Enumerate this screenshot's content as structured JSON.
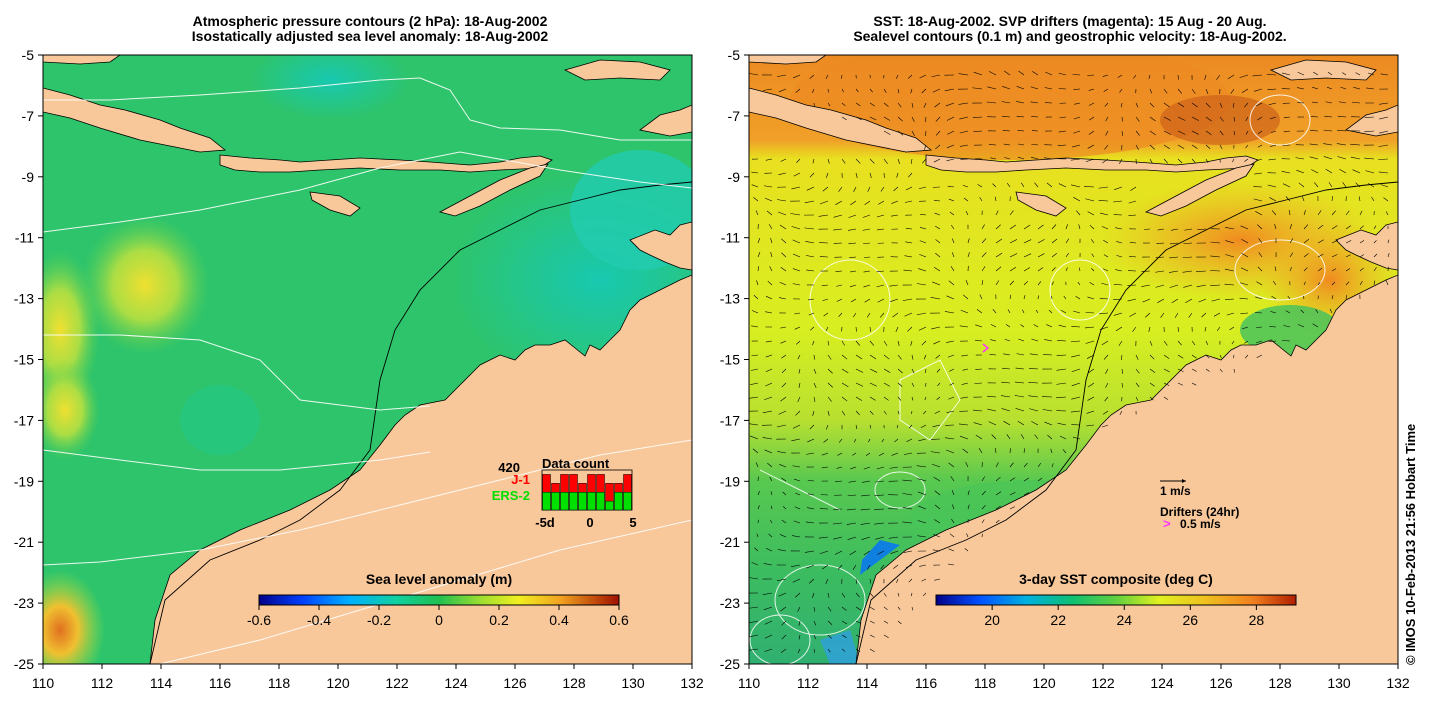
{
  "left_panel": {
    "title_line1": "Atmospheric pressure contours (2 hPa): 18-Aug-2002",
    "title_line2": "Isostatically adjusted sea level anomaly: 18-Aug-2002",
    "colorbar": {
      "label": "Sea level anomaly (m)",
      "ticks": [
        "-0.6",
        "-0.4",
        "-0.2",
        "0",
        "0.2",
        "0.4",
        "0.6"
      ],
      "tick_values": [
        -0.6,
        -0.4,
        -0.2,
        0,
        0.2,
        0.4,
        0.6
      ],
      "range": [
        -0.6,
        0.6
      ]
    },
    "data_count": {
      "title": "Data count",
      "total": "420",
      "series": [
        {
          "name": "J-1",
          "color": "#ff0000"
        },
        {
          "name": "ERS-2",
          "color": "#00e000"
        }
      ],
      "axis_labels": [
        "-5d",
        "0",
        "5"
      ],
      "bars_total": [
        4,
        3,
        4,
        4,
        3,
        4,
        4,
        3,
        3,
        4
      ],
      "bars_ers2": [
        2,
        2,
        2,
        2,
        2,
        2,
        2,
        1,
        2,
        2
      ],
      "bars_ymax": 4.5
    }
  },
  "right_panel": {
    "title_line1": "SST: 18-Aug-2002. SVP drifters (magenta): 15 Aug - 20 Aug.",
    "title_line2": "Sealevel contours (0.1 m) and geostrophic velocity: 18-Aug-2002.",
    "colorbar": {
      "label": "3-day SST composite (deg C)",
      "ticks": [
        "20",
        "22",
        "24",
        "26",
        "28"
      ],
      "tick_values": [
        20,
        22,
        24,
        26,
        28
      ],
      "range": [
        18.3,
        29.2
      ]
    },
    "velocity_scale": "1 m/s",
    "drifter_legend": {
      "title": "Drifters (24hr)",
      "glyph": ">",
      "label": "0.5 m/s",
      "color": "#ff33ff"
    }
  },
  "map_axes": {
    "lon_range": [
      110,
      132
    ],
    "lat_range": [
      -25,
      -5
    ],
    "lon_ticks": [
      "110",
      "112",
      "114",
      "116",
      "118",
      "120",
      "122",
      "124",
      "126",
      "128",
      "130",
      "132"
    ],
    "lon_values": [
      110,
      112,
      114,
      116,
      118,
      120,
      122,
      124,
      126,
      128,
      130,
      132
    ],
    "lat_ticks": [
      "-5",
      "-7",
      "-9",
      "-11",
      "-13",
      "-15",
      "-17",
      "-19",
      "-21",
      "-23",
      "-25"
    ],
    "lat_values": [
      -5,
      -7,
      -9,
      -11,
      -13,
      -15,
      -17,
      -19,
      -21,
      -23,
      -25
    ]
  },
  "credit": "© IMOS 10-Feb-2013 21:56 Hobart Time",
  "colors": {
    "land": "#f8c89a",
    "ocean_mid": "#2ec46b",
    "ocean_teal": "#19c7a8",
    "sst_warm": "#f19a2a",
    "sst_yellow": "#dcef1c"
  }
}
